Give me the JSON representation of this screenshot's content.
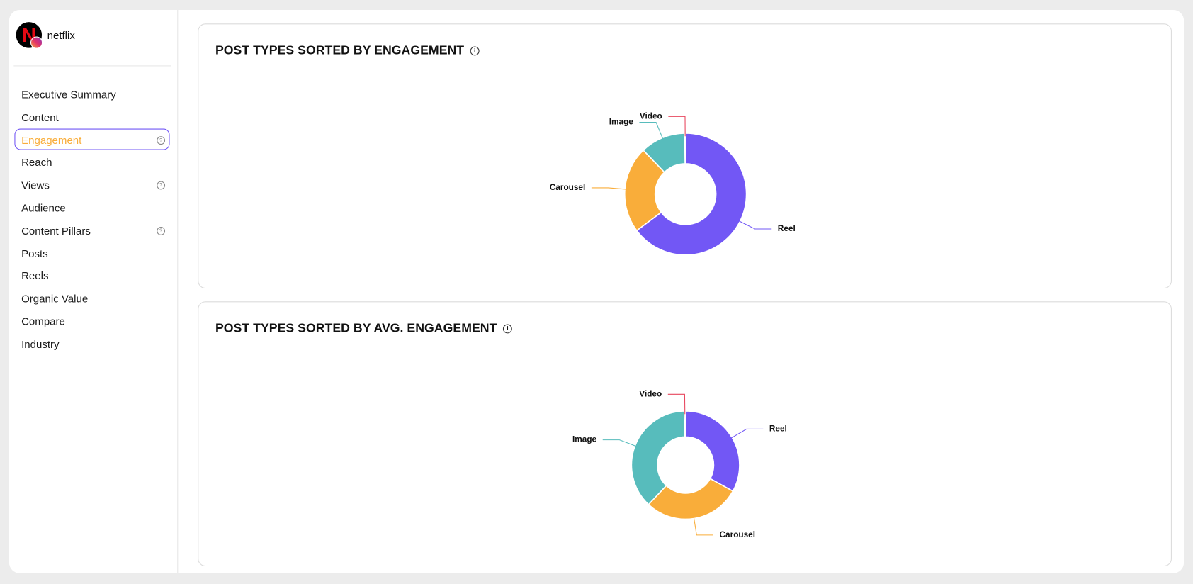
{
  "app": {
    "account": "netflix",
    "nav": [
      {
        "label": "Executive Summary"
      },
      {
        "label": "Content"
      },
      {
        "label": "Engagement",
        "active": true,
        "help": true
      },
      {
        "label": "Reach"
      },
      {
        "label": "Views",
        "help": true
      },
      {
        "label": "Audience"
      },
      {
        "label": "Content Pillars",
        "help": true
      },
      {
        "label": "Posts"
      },
      {
        "label": "Reels"
      },
      {
        "label": "Organic Value"
      },
      {
        "label": "Compare"
      },
      {
        "label": "Industry"
      }
    ]
  },
  "chart_data": [
    {
      "type": "pie",
      "donut": true,
      "title": "POST TYPES SORTED BY ENGAGEMENT",
      "categories": [
        "Reel",
        "Carousel",
        "Image",
        "Video"
      ],
      "values": [
        64.8,
        23,
        12,
        0.2
      ],
      "colors": [
        "#7257f5",
        "#f9ad3a",
        "#57bcbc",
        "#e8475f"
      ]
    },
    {
      "type": "pie",
      "donut": true,
      "title": "POST TYPES SORTED BY AVG. ENGAGEMENT",
      "categories": [
        "Reel",
        "Carousel",
        "Image",
        "Video"
      ],
      "values": [
        33,
        29,
        37.6,
        0.4
      ],
      "colors": [
        "#7257f5",
        "#f9ad3a",
        "#57bcbc",
        "#e8475f"
      ]
    }
  ]
}
